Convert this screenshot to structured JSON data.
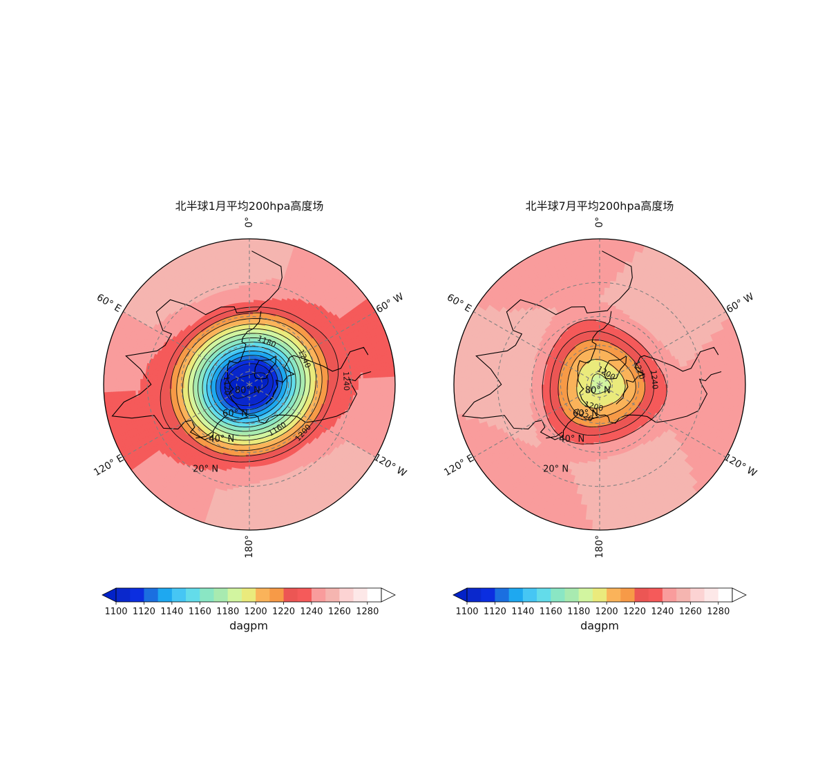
{
  "chart_data": {
    "type": "polar-contour",
    "levels": [
      1100,
      1110,
      1120,
      1130,
      1140,
      1150,
      1160,
      1170,
      1180,
      1190,
      1200,
      1210,
      1220,
      1230,
      1240,
      1250,
      1260,
      1270,
      1280
    ],
    "level_colors": [
      "#0a28cc",
      "#0b2ee0",
      "#1b6fe0",
      "#1ea8f0",
      "#46c6f4",
      "#63dcea",
      "#8ae6c4",
      "#a8eab0",
      "#d2f5a0",
      "#eaea7c",
      "#fab35a",
      "#f79a47",
      "#ec5654",
      "#f55a5a",
      "#f99c9c",
      "#f5b5b0",
      "#fcd3d3",
      "#fde8e8",
      "#ffffff"
    ],
    "under_color": "#0222c8",
    "colorbar_ticks": [
      1100,
      1120,
      1140,
      1160,
      1180,
      1200,
      1220,
      1240,
      1260,
      1280
    ],
    "colorbar_label": "dagpm",
    "panels": [
      {
        "title": "北半球1月平均200hpa高度场",
        "meridian_labels": [
          "0°",
          "60° W",
          "120° W",
          "180°",
          "120° E",
          "60° E"
        ],
        "lat_labels": [
          "20° N",
          "40° N",
          "60° N",
          "80° N"
        ],
        "center": {
          "lat": 90,
          "lon": 0,
          "value": 1102
        },
        "troughs": [
          {
            "lat": 78,
            "lon": 110,
            "value": 1100,
            "radius_deg": 22
          },
          {
            "lat": 75,
            "lon": -70,
            "value": 1104,
            "radius_deg": 18
          }
        ],
        "contour_labels": [
          {
            "text": "1180",
            "lat": 55,
            "lon": -22
          },
          {
            "text": "1240",
            "lat": 45,
            "lon": -65
          },
          {
            "text": "1240",
            "lat": 23,
            "lon": -88
          },
          {
            "text": "1200",
            "lat": 37,
            "lon": -132
          },
          {
            "text": "1160",
            "lat": 50,
            "lon": -148
          },
          {
            "text": "1120",
            "lat": 72,
            "lon": 93
          }
        ],
        "profile": [
          {
            "lat": 90,
            "value": 1105
          },
          {
            "lat": 75,
            "value": 1110
          },
          {
            "lat": 60,
            "value": 1150
          },
          {
            "lat": 45,
            "value": 1195
          },
          {
            "lat": 30,
            "value": 1235
          },
          {
            "lat": 15,
            "value": 1248
          },
          {
            "lat": 0,
            "value": 1248
          }
        ]
      },
      {
        "title": "北半球7月平均200hpa高度场",
        "meridian_labels": [
          "0°",
          "60° W",
          "120° W",
          "180°",
          "120° E",
          "60° E"
        ],
        "lat_labels": [
          "20° N",
          "40° N",
          "60° N",
          "80° N"
        ],
        "center": {
          "lat": 90,
          "lon": 0,
          "value": 1182
        },
        "troughs": [],
        "contour_labels": [
          {
            "text": "1220",
            "lat": 58,
            "lon": -70
          },
          {
            "text": "1240",
            "lat": 49,
            "lon": -85
          },
          {
            "text": "1200",
            "lat": 80,
            "lon": -30
          },
          {
            "text": "1200",
            "lat": 72,
            "lon": 165
          },
          {
            "text": "1220",
            "lat": 63,
            "lon": 153
          }
        ],
        "profile": [
          {
            "lat": 90,
            "value": 1185
          },
          {
            "lat": 75,
            "value": 1195
          },
          {
            "lat": 60,
            "value": 1215
          },
          {
            "lat": 45,
            "value": 1240
          },
          {
            "lat": 30,
            "value": 1252
          },
          {
            "lat": 15,
            "value": 1250
          },
          {
            "lat": 0,
            "value": 1248
          }
        ],
        "ridge": {
          "value": 1254,
          "lat_min": 18,
          "lat_max": 40,
          "lon_min": 30,
          "lon_max": 140
        }
      }
    ]
  }
}
